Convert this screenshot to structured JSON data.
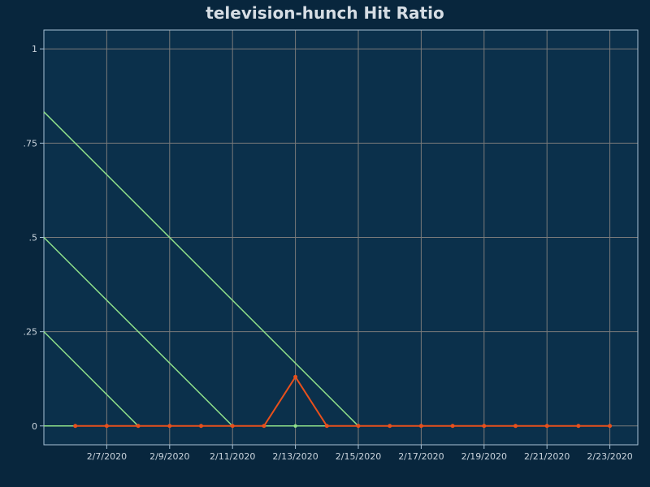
{
  "chart_data": {
    "type": "line",
    "title": "television-hunch Hit Ratio",
    "xlabel": "",
    "ylabel": "",
    "x_start": "2/5/2020",
    "x_tick_labels": [
      "2/7/2020",
      "2/9/2020",
      "2/11/2020",
      "2/13/2020",
      "2/15/2020",
      "2/17/2020",
      "2/19/2020",
      "2/21/2020",
      "2/23/2020"
    ],
    "y_tick_labels": [
      "0",
      ".25",
      ".5",
      ".75",
      "1"
    ],
    "y_ticks": [
      0,
      0.25,
      0.5,
      0.75,
      1
    ],
    "ylim": [
      -0.05,
      1.05
    ],
    "grid": true,
    "legend": "none",
    "colors": {
      "background": "#08263d",
      "plot_background": "#0b304b",
      "grid": "#7a7a7a",
      "frame": "#a9c2d6",
      "series_hit": "#e8501c",
      "series_reference": "#8fe08a"
    },
    "series": [
      {
        "color": "#e8501c",
        "markers": true,
        "points": [
          [
            "2/6/2020",
            0
          ],
          [
            "2/7/2020",
            0
          ],
          [
            "2/8/2020",
            0
          ],
          [
            "2/9/2020",
            0
          ],
          [
            "2/10/2020",
            0
          ],
          [
            "2/11/2020",
            0
          ],
          [
            "2/12/2020",
            0
          ],
          [
            "2/13/2020",
            0.13
          ],
          [
            "2/14/2020",
            0
          ],
          [
            "2/15/2020",
            0
          ],
          [
            "2/16/2020",
            0
          ],
          [
            "2/17/2020",
            0
          ],
          [
            "2/18/2020",
            0
          ],
          [
            "2/19/2020",
            0
          ],
          [
            "2/20/2020",
            0
          ],
          [
            "2/21/2020",
            0
          ],
          [
            "2/22/2020",
            0
          ],
          [
            "2/23/2020",
            0
          ]
        ]
      },
      {
        "color": "#8fe08a",
        "markers": false,
        "points": [
          [
            "2/5/2020",
            0
          ],
          [
            "2/13/2020",
            0
          ],
          [
            "2/15/2020",
            0
          ]
        ]
      },
      {
        "color": "#8fe08a",
        "markers": false,
        "points": [
          [
            "2/5/2020",
            0.25
          ],
          [
            "2/8/2020",
            0
          ]
        ]
      },
      {
        "color": "#8fe08a",
        "markers": false,
        "points": [
          [
            "2/5/2020",
            0.5
          ],
          [
            "2/11/2020",
            0
          ]
        ]
      },
      {
        "color": "#8fe08a",
        "markers": false,
        "points": [
          [
            "2/5/2020",
            0.833
          ],
          [
            "2/15/2020",
            0
          ]
        ]
      }
    ]
  }
}
